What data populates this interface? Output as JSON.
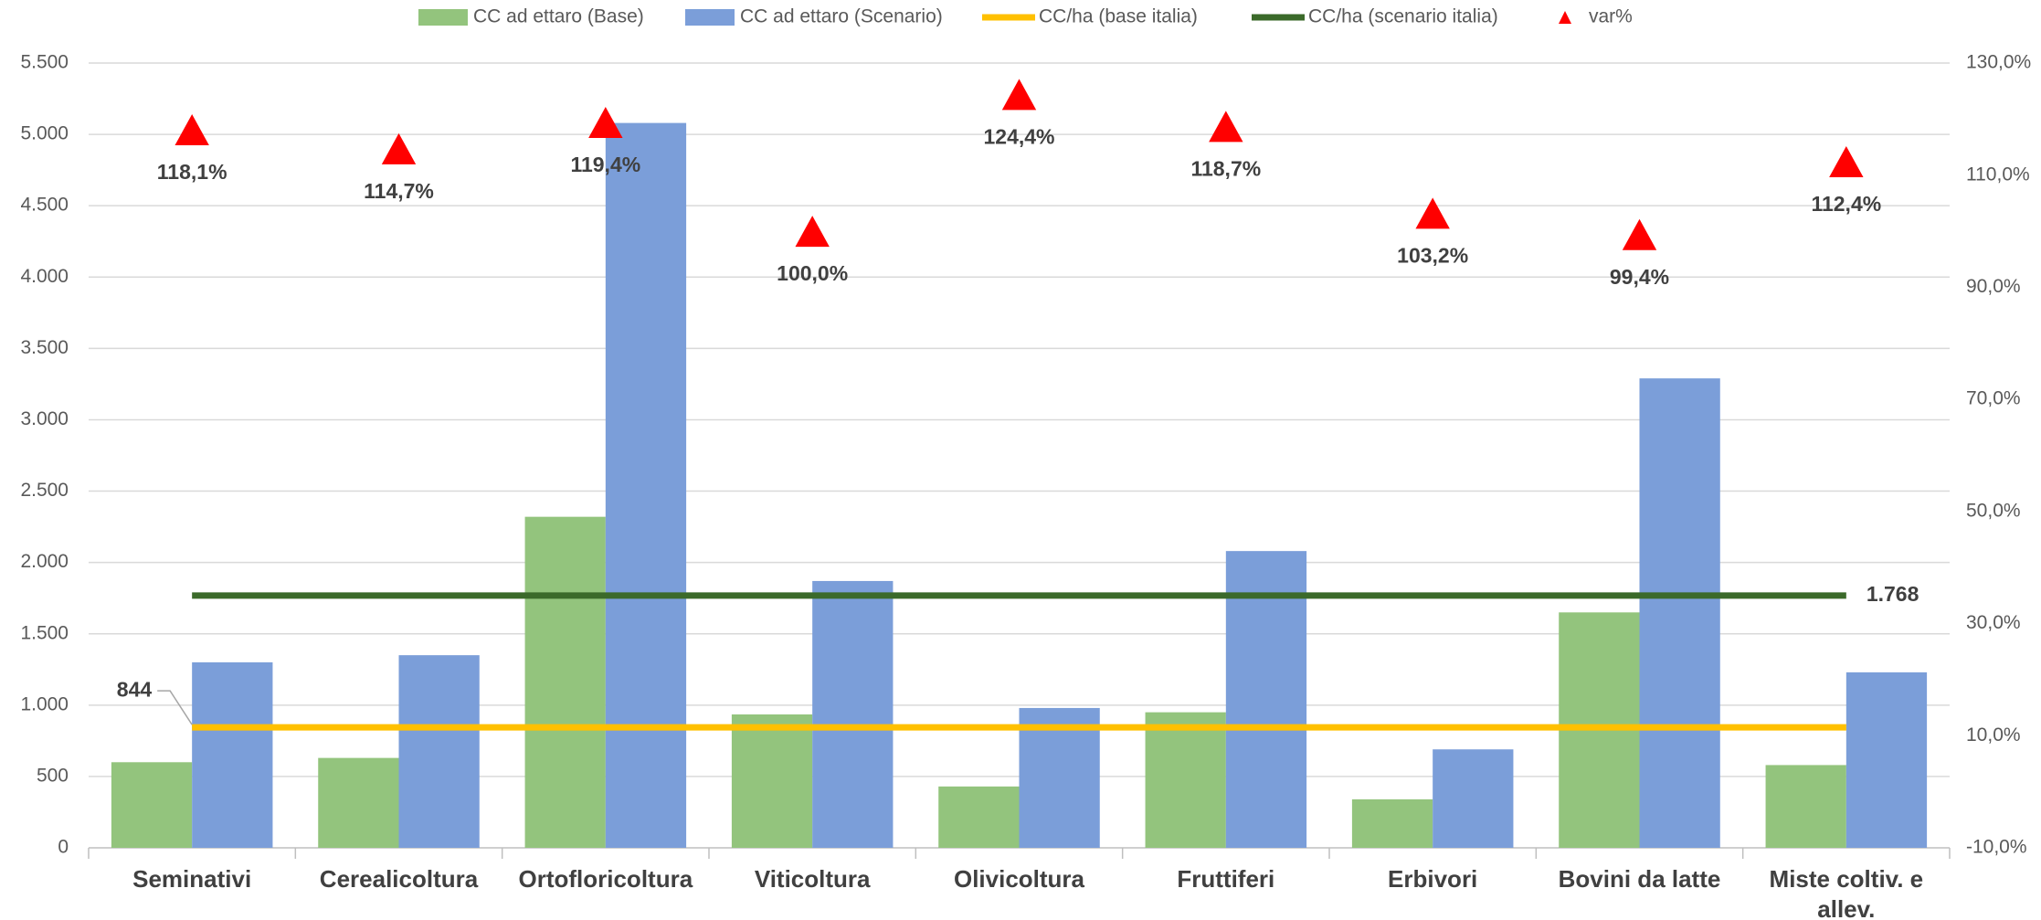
{
  "chart_data": {
    "type": "bar",
    "categories": [
      "Seminativi",
      "Cerealicoltura",
      "Ortofloricoltura",
      "Viticoltura",
      "Olivicoltura",
      "Fruttiferi",
      "Erbivori",
      "Bovini da latte",
      "Miste coltiv.  e allev."
    ],
    "series": [
      {
        "name": "CC ad ettaro (Base)",
        "type": "bar",
        "color": "#93c47d",
        "values": [
          600,
          630,
          2320,
          935,
          430,
          950,
          340,
          1650,
          580
        ]
      },
      {
        "name": "CC ad ettaro (Scenario)",
        "type": "bar",
        "color": "#7b9ed9",
        "values": [
          1300,
          1350,
          5080,
          1870,
          980,
          2080,
          690,
          3290,
          1230
        ]
      },
      {
        "name": "CC/ha (base italia)",
        "type": "line",
        "color": "#ffc000",
        "value": 844,
        "value_label": "844",
        "label_side": "left"
      },
      {
        "name": "CC/ha (scenario italia)",
        "type": "line",
        "color": "#3b6a2a",
        "value": 1768,
        "value_label": "1.768",
        "label_side": "right"
      },
      {
        "name": "var%",
        "type": "scatter",
        "color": "#ff0000",
        "axis": "y2",
        "values": [
          118.1,
          114.7,
          119.4,
          100.0,
          124.4,
          118.7,
          103.2,
          99.4,
          112.4
        ],
        "value_labels": [
          "118,1%",
          "114,7%",
          "119,4%",
          "100,0%",
          "124,4%",
          "118,7%",
          "103,2%",
          "99,4%",
          "112,4%"
        ]
      }
    ],
    "ylim": [
      0,
      5500
    ],
    "yticks": [
      0,
      500,
      {
        "value": 1000,
        "label": "1.000"
      },
      {
        "value": 1500,
        "label": "1.500"
      },
      {
        "value": 2000,
        "label": "2.000"
      },
      {
        "value": 2500,
        "label": "2.500"
      },
      {
        "value": 3000,
        "label": "3.000"
      },
      {
        "value": 3500,
        "label": "3.500"
      },
      {
        "value": 4000,
        "label": "4.000"
      },
      {
        "value": 4500,
        "label": "4.500"
      },
      {
        "value": 5000,
        "label": "5.000"
      },
      {
        "value": 5500,
        "label": "5.500"
      }
    ],
    "y2lim": [
      -10,
      130
    ],
    "y2ticks": [
      {
        "value": -10,
        "label": "-10,0%"
      },
      {
        "value": 10,
        "label": "10,0%"
      },
      {
        "value": 30,
        "label": "30,0%"
      },
      {
        "value": 50,
        "label": "50,0%"
      },
      {
        "value": 70,
        "label": "70,0%"
      },
      {
        "value": 90,
        "label": "90,0%"
      },
      {
        "value": 110,
        "label": "110,0%"
      },
      {
        "value": 130,
        "label": "130,0%"
      }
    ],
    "grid": true,
    "legend": "top"
  }
}
